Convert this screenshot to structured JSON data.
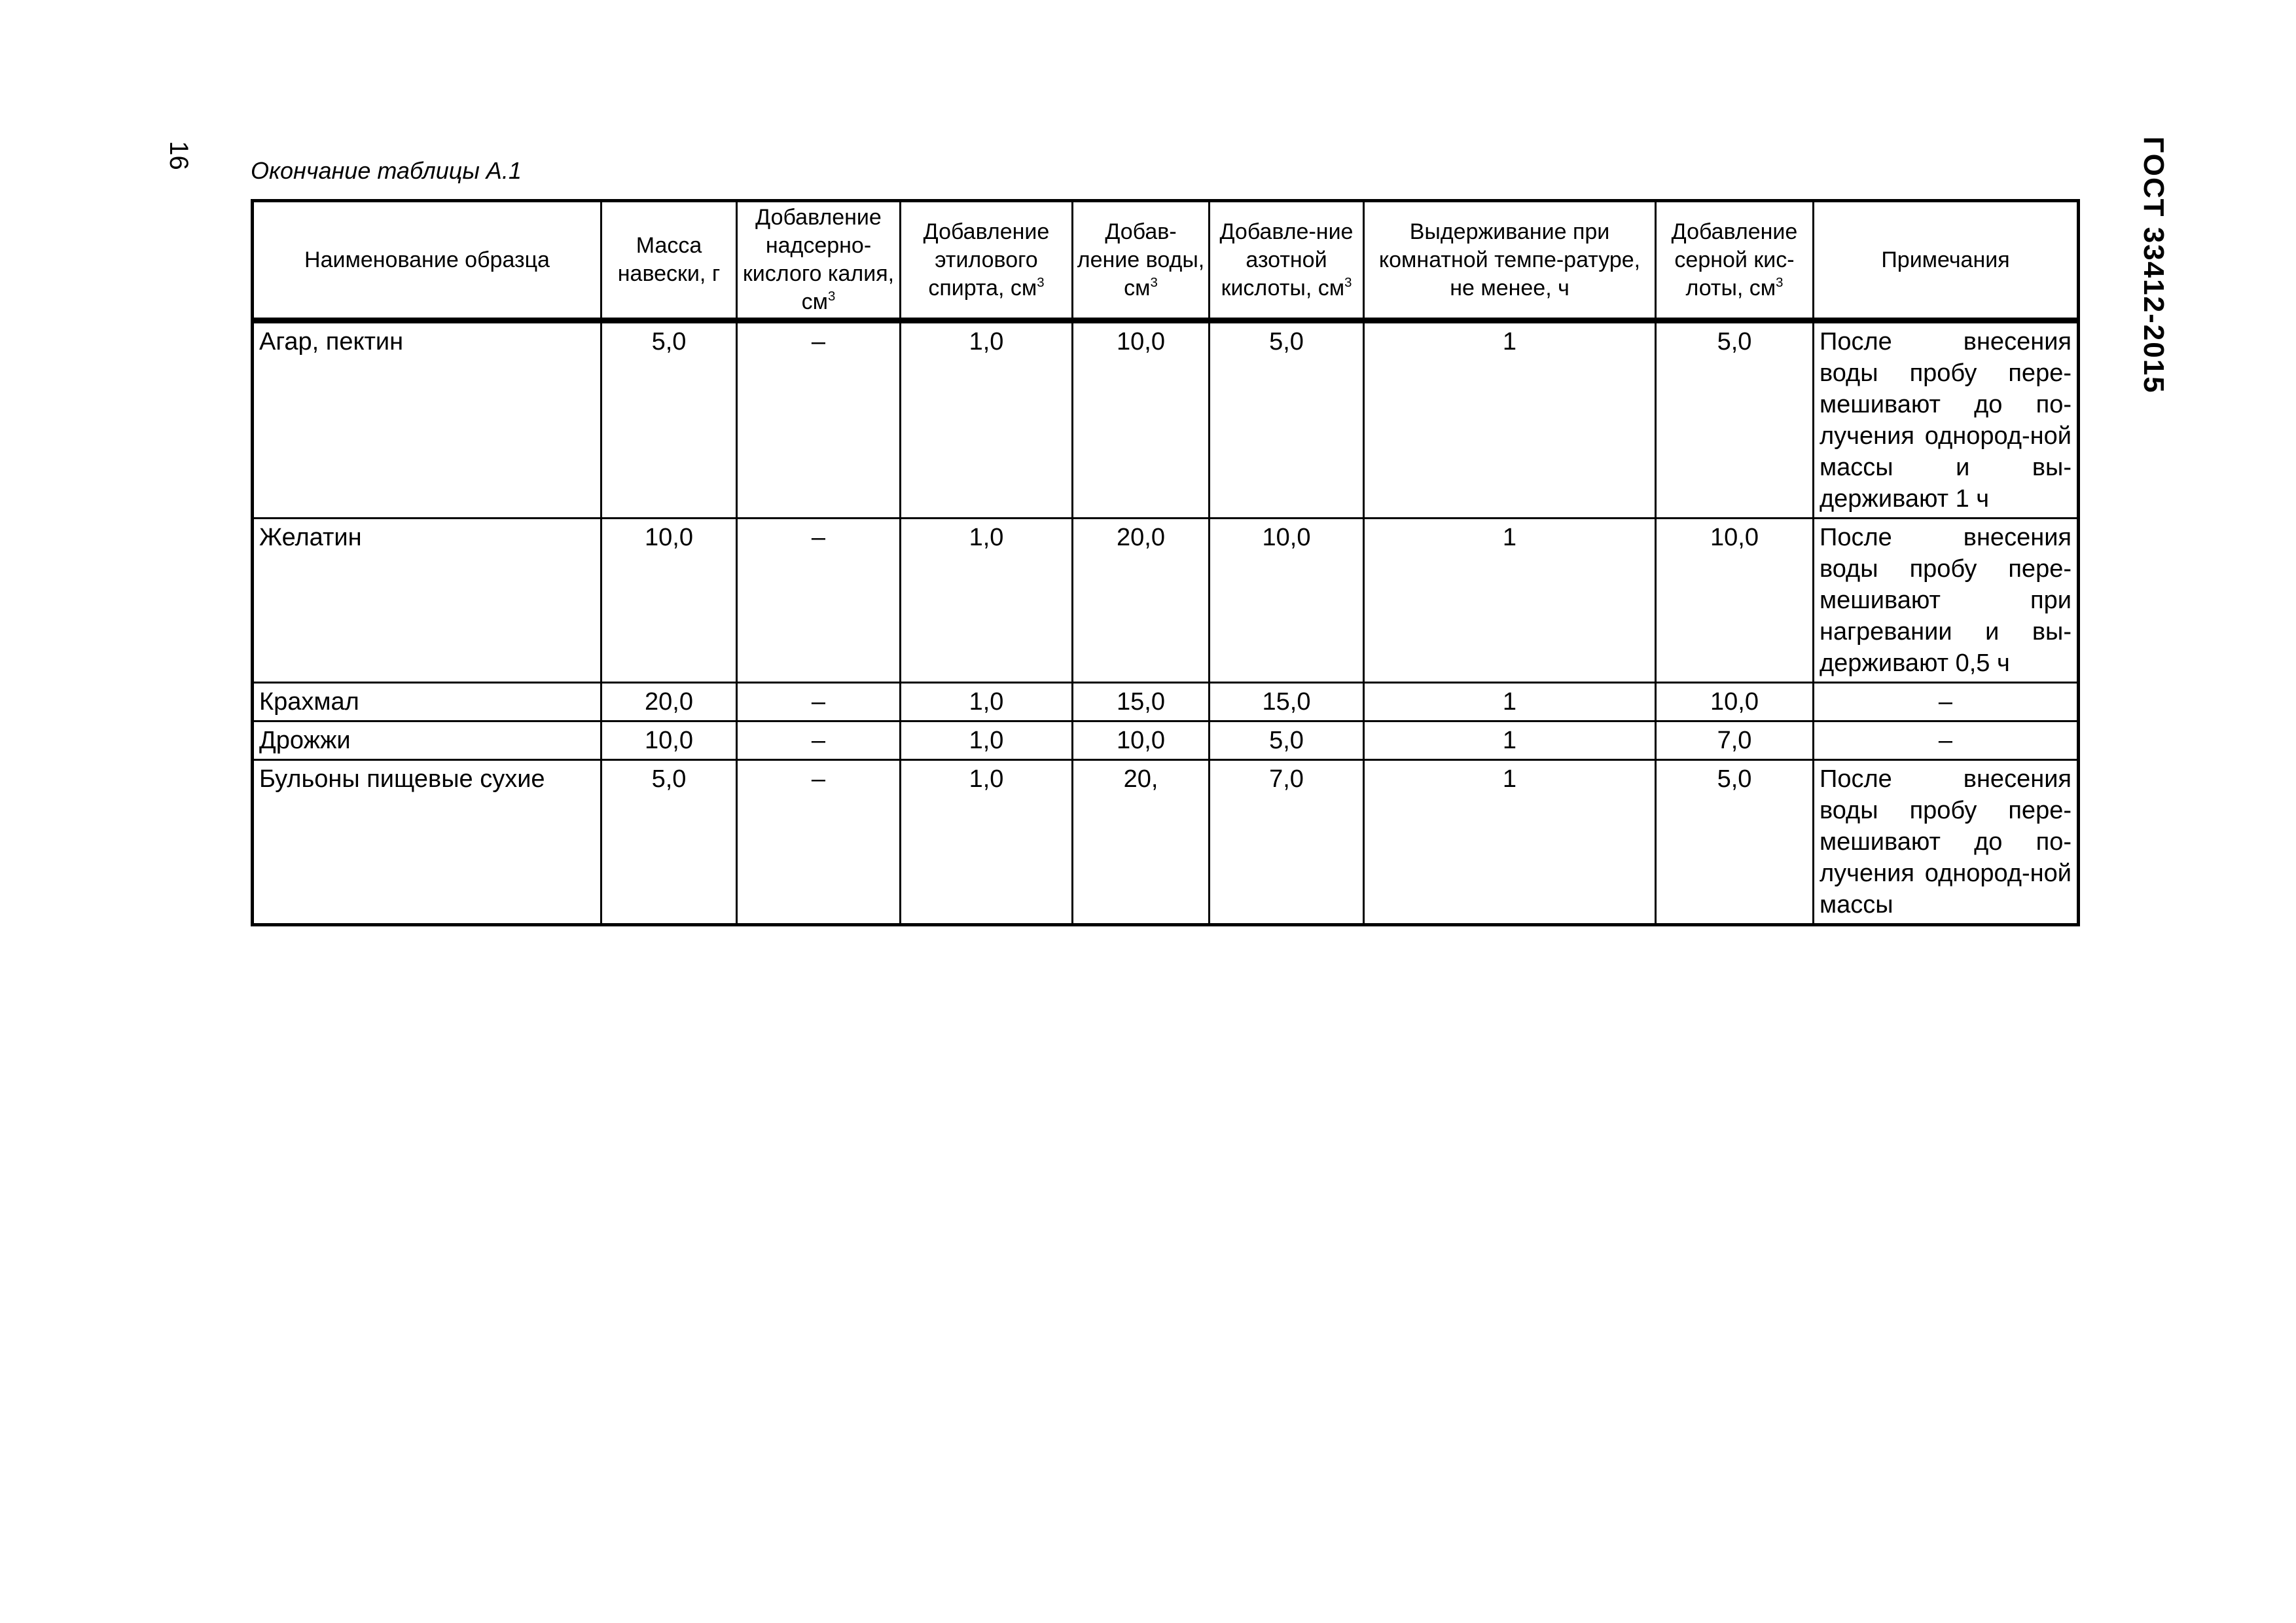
{
  "page_number": "16",
  "standard": "ГОСТ 33412-2015",
  "caption": "Окончание таблицы А.1",
  "table": {
    "headers": [
      {
        "text": "Наименование образца",
        "unit": ""
      },
      {
        "text": "Масса навески, г",
        "unit": ""
      },
      {
        "text": "Добавление надсерно-кислого калия, см",
        "unit": "3"
      },
      {
        "text": "Добавление этилового спирта, см",
        "unit": "3"
      },
      {
        "text": "Добав-ление воды, см",
        "unit": "3"
      },
      {
        "text": "Добавле-ние азотной кислоты, см",
        "unit": "3"
      },
      {
        "text": "Выдерживание при комнатной темпе-ратуре, не менее, ч",
        "unit": ""
      },
      {
        "text": "Добавление серной кис-лоты, см",
        "unit": "3"
      },
      {
        "text": "Примечания",
        "unit": ""
      }
    ],
    "rows": [
      [
        "Агар, пектин",
        "5,0",
        "–",
        "1,0",
        "10,0",
        "5,0",
        "1",
        "5,0",
        "После внесения воды пробу пере-мешивают до по-лучения однород-ной массы и вы-держивают 1 ч"
      ],
      [
        "Желатин",
        "10,0",
        "–",
        "1,0",
        "20,0",
        "10,0",
        "1",
        "10,0",
        "После внесения воды пробу пере-мешивают при нагревании и вы-держивают 0,5 ч"
      ],
      [
        "Крахмал",
        "20,0",
        "–",
        "1,0",
        "15,0",
        "15,0",
        "1",
        "10,0",
        "–"
      ],
      [
        "Дрожжи",
        "10,0",
        "–",
        "1,0",
        "10,0",
        "5,0",
        "1",
        "7,0",
        "–"
      ],
      [
        "Бульоны пищевые сухие",
        "5,0",
        "–",
        "1,0",
        "20,",
        "7,0",
        "1",
        "5,0",
        "После внесения воды пробу пере-мешивают до по-лучения однород-ной массы"
      ]
    ]
  }
}
